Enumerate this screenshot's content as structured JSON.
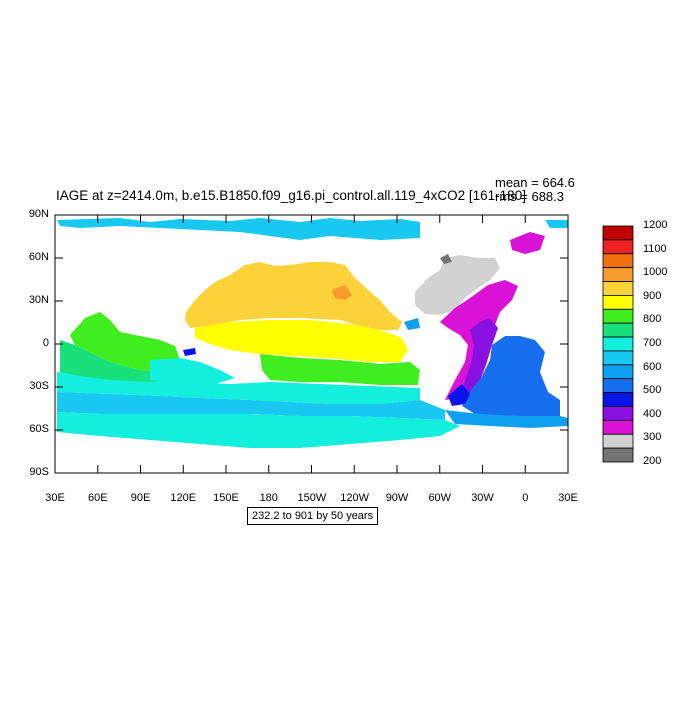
{
  "title": "IAGE at z=2414.0m, b.e15.B1850.f09_g16.pi_control.all.119_4xCO2 [161-180]",
  "stats": {
    "mean": "mean = 664.6",
    "rms": "rms = 688.3"
  },
  "contour_info": "232.2 to 901 by 50 years",
  "y_ticks": [
    "90N",
    "60N",
    "30N",
    "0",
    "30S",
    "60S",
    "90S"
  ],
  "x_ticks": [
    "30E",
    "60E",
    "90E",
    "120E",
    "150E",
    "180",
    "150W",
    "120W",
    "90W",
    "60W",
    "30W",
    "0",
    "30E"
  ],
  "colorbar": {
    "labels": [
      "1200",
      "1100",
      "1000",
      "900",
      "800",
      "700",
      "600",
      "500",
      "400",
      "300",
      "200"
    ],
    "colors": [
      "#c00000",
      "#ee2222",
      "#f07010",
      "#f79a30",
      "#fcd23b",
      "#ffff00",
      "#40ee20",
      "#19e07a",
      "#14eedd",
      "#18c8f0",
      "#0ea0ee",
      "#1670ee",
      "#0a14e8",
      "#8a10e0",
      "#d812d6",
      "#d2d2d2",
      "#737373"
    ]
  },
  "colors": {
    "land": "#ffffff",
    "frame": "#000000"
  }
}
